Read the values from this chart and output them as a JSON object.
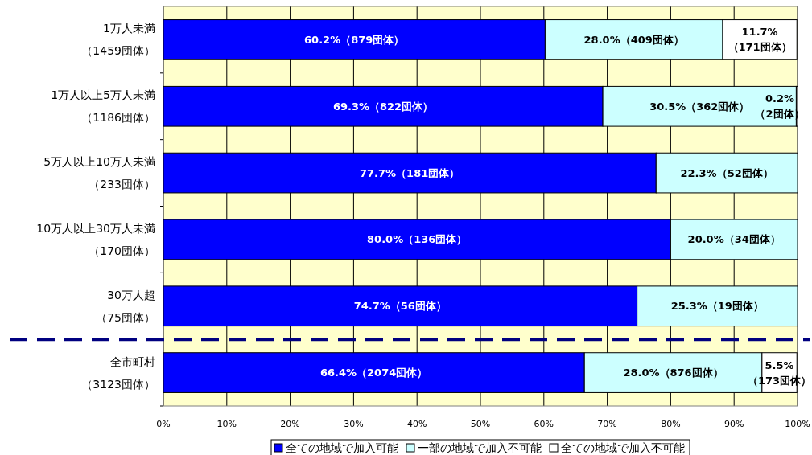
{
  "chart_data": {
    "type": "bar",
    "orientation": "horizontal",
    "stacked": true,
    "categories": [
      "1万人未満（1459団体）",
      "1万人以上5万人未満（1186団体）",
      "5万人以上10万人未満（233団体）",
      "10万人以上30万人未満（170団体）",
      "30万人超（75団体）",
      "全市町村（3123団体）"
    ],
    "series": [
      {
        "name": "全ての地域で加入可能",
        "color": "#0000ff",
        "values": [
          60.2,
          69.3,
          77.7,
          80.0,
          74.7,
          66.4
        ],
        "value_labels": [
          "60.2%（879団体）",
          "69.3%（822団体）",
          "77.7%（181団体）",
          "80.0%（136団体）",
          "74.7%（56団体）",
          "66.4%（2074団体）"
        ]
      },
      {
        "name": "一部の地域で加入不可能",
        "color": "#ccffff",
        "values": [
          28.0,
          30.5,
          22.3,
          20.0,
          25.3,
          28.0
        ],
        "value_labels": [
          "28.0%（409団体）",
          "30.5%（362団体）",
          "22.3%（52団体）",
          "20.0%（34団体）",
          "25.3%（19団体）",
          "28.0%（876団体）"
        ]
      },
      {
        "name": "全ての地域で加入不可能",
        "color": "#ffffff",
        "values": [
          11.7,
          0.2,
          null,
          null,
          null,
          5.5
        ],
        "value_labels": [
          "11.7%\n（171団体）",
          "0.2%\n（2団体）",
          null,
          null,
          null,
          "5.5%\n（173団体）"
        ]
      }
    ],
    "xlim": [
      0,
      100
    ],
    "xticks": [
      {
        "value": 0,
        "label": "0%"
      },
      {
        "value": 10,
        "label": "10%"
      },
      {
        "value": 20,
        "label": "20%"
      },
      {
        "value": 30,
        "label": "30%"
      },
      {
        "value": 40,
        "label": "40%"
      },
      {
        "value": 50,
        "label": "50%"
      },
      {
        "value": 60,
        "label": "60%"
      },
      {
        "value": 70,
        "label": "70%"
      },
      {
        "value": 80,
        "label": "80%"
      },
      {
        "value": 90,
        "label": "90%"
      },
      {
        "value": 100,
        "label": "100%"
      }
    ],
    "grid": "x",
    "legend": "bottom",
    "bands": [
      {
        "axis": "x",
        "from": 0,
        "to": 100,
        "color": "#ffffcc"
      }
    ],
    "ref_lines": [
      {
        "axis": "y",
        "value": "全市町村（3123団体）",
        "color": "#000080",
        "line_style": "dashed"
      }
    ]
  }
}
